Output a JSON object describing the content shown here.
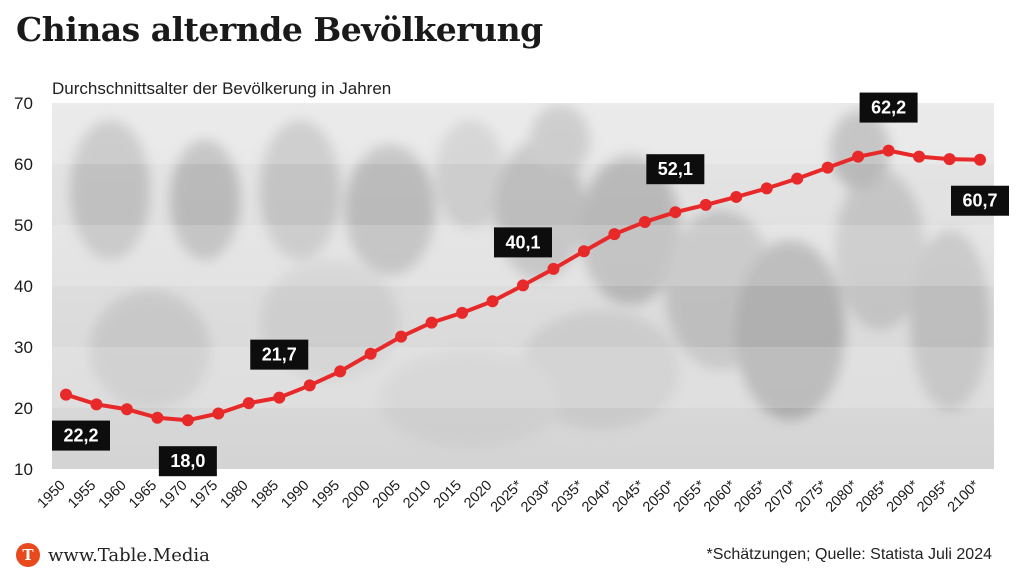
{
  "header": {
    "title": "Chinas alternde Bevölkerung",
    "subtitle": "Durchschnittsalter der Bevölkerung in Jahren"
  },
  "footer": {
    "logo_letter": "T",
    "logo_text": "www.Table.Media",
    "source": "*Schätzungen; Quelle: Statista Juli 2024"
  },
  "colors": {
    "line": "#e8292a",
    "label_bg": "#0d0d0d",
    "label_text": "#ffffff",
    "logo": "#e8491d"
  },
  "chart_data": {
    "type": "line",
    "title": "Chinas alternde Bevölkerung",
    "ylabel": "Durchschnittsalter der Bevölkerung in Jahren",
    "xlabel": "",
    "ylim": [
      10,
      70
    ],
    "yticks": [
      10,
      20,
      30,
      40,
      50,
      60,
      70
    ],
    "grid": "horizontal bands",
    "categories": [
      "1950",
      "1955",
      "1960",
      "1965",
      "1970",
      "1975",
      "1980",
      "1985",
      "1990",
      "1995",
      "2000",
      "2005",
      "2010",
      "2015",
      "2020",
      "2025*",
      "2030*",
      "2035*",
      "2040*",
      "2045*",
      "2050*",
      "2055*",
      "2060*",
      "2065*",
      "2070*",
      "2075*",
      "2080*",
      "2085*",
      "2090*",
      "2095*",
      "2100*"
    ],
    "series": [
      {
        "values": [
          22.2,
          20.6,
          19.8,
          18.4,
          18.0,
          19.1,
          20.8,
          21.7,
          23.7,
          26.0,
          28.9,
          31.7,
          34.0,
          35.6,
          37.5,
          40.1,
          42.8,
          45.7,
          48.5,
          50.5,
          52.1,
          53.3,
          54.6,
          56.0,
          57.6,
          59.4,
          61.2,
          62.2,
          61.2,
          60.8,
          60.7
        ]
      }
    ],
    "data_labels": [
      {
        "category": "1950",
        "text": "22,2",
        "position": "below"
      },
      {
        "category": "1970",
        "text": "18,0",
        "position": "below"
      },
      {
        "category": "1985",
        "text": "21,7",
        "position": "above"
      },
      {
        "category": "2025*",
        "text": "40,1",
        "position": "above"
      },
      {
        "category": "2050*",
        "text": "52,1",
        "position": "above"
      },
      {
        "category": "2085*",
        "text": "62,2",
        "position": "above"
      },
      {
        "category": "2100*",
        "text": "60,7",
        "position": "below"
      }
    ]
  }
}
